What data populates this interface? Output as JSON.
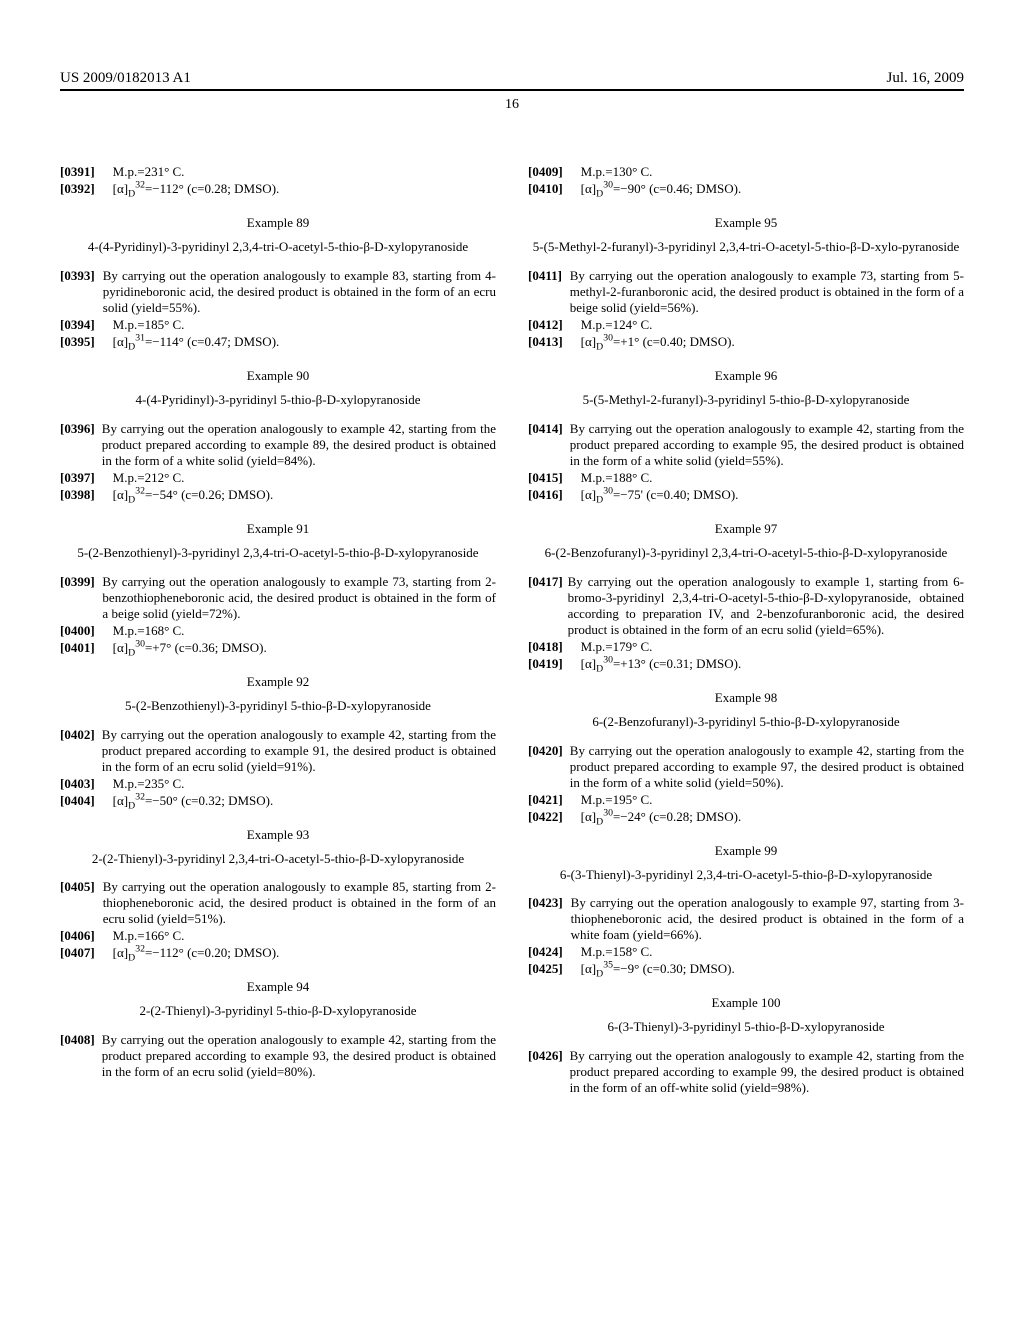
{
  "header": {
    "patent_number": "US 2009/0182013 A1",
    "date": "Jul. 16, 2009",
    "page_number": "16"
  },
  "left": {
    "p0391": {
      "num": "[0391]",
      "text": "M.p.=231° C."
    },
    "p0392": {
      "num": "[0392]",
      "text": "[α]",
      "sub": "D",
      "sup": "32",
      "tail": "=−112° (c=0.28; DMSO)."
    },
    "ex89": {
      "heading": "Example 89",
      "title": "4-(4-Pyridinyl)-3-pyridinyl 2,3,4-tri-O-acetyl-5-thio-β-D-xylopyranoside"
    },
    "p0393": {
      "num": "[0393]",
      "text": "By carrying out the operation analogously to example 83, starting from 4-pyridineboronic acid, the desired product is obtained in the form of an ecru solid (yield=55%)."
    },
    "p0394": {
      "num": "[0394]",
      "text": "M.p.=185° C."
    },
    "p0395": {
      "num": "[0395]",
      "text": "[α]",
      "sub": "D",
      "sup": "31",
      "tail": "=−114° (c=0.47; DMSO)."
    },
    "ex90": {
      "heading": "Example 90",
      "title": "4-(4-Pyridinyl)-3-pyridinyl 5-thio-β-D-xylopyranoside"
    },
    "p0396": {
      "num": "[0396]",
      "text": "By carrying out the operation analogously to example 42, starting from the product prepared according to example 89, the desired product is obtained in the form of a white solid (yield=84%)."
    },
    "p0397": {
      "num": "[0397]",
      "text": "M.p.=212° C."
    },
    "p0398": {
      "num": "[0398]",
      "text": "[α]",
      "sub": "D",
      "sup": "32",
      "tail": "=−54° (c=0.26; DMSO)."
    },
    "ex91": {
      "heading": "Example 91",
      "title": "5-(2-Benzothienyl)-3-pyridinyl 2,3,4-tri-O-acetyl-5-thio-β-D-xylopyranoside"
    },
    "p0399": {
      "num": "[0399]",
      "text": "By carrying out the operation analogously to example 73, starting from 2-benzothiopheneboronic acid, the desired product is obtained in the form of a beige solid (yield=72%)."
    },
    "p0400": {
      "num": "[0400]",
      "text": "M.p.=168° C."
    },
    "p0401": {
      "num": "[0401]",
      "text": "[α]",
      "sub": "D",
      "sup": "30",
      "tail": "=+7° (c=0.36; DMSO)."
    },
    "ex92": {
      "heading": "Example 92",
      "title": "5-(2-Benzothienyl)-3-pyridinyl 5-thio-β-D-xylopyranoside"
    },
    "p0402": {
      "num": "[0402]",
      "text": "By carrying out the operation analogously to example 42, starting from the product prepared according to example 91, the desired product is obtained in the form of an ecru solid (yield=91%)."
    },
    "p0403": {
      "num": "[0403]",
      "text": "M.p.=235° C."
    },
    "p0404": {
      "num": "[0404]",
      "text": "[α]",
      "sub": "D",
      "sup": "32",
      "tail": "=−50° (c=0.32; DMSO)."
    },
    "ex93": {
      "heading": "Example 93",
      "title": "2-(2-Thienyl)-3-pyridinyl 2,3,4-tri-O-acetyl-5-thio-β-D-xylopyranoside"
    },
    "p0405": {
      "num": "[0405]",
      "text": "By carrying out the operation analogously to example 85, starting from 2-thiopheneboronic acid, the desired product is obtained in the form of an ecru solid (yield=51%)."
    },
    "p0406": {
      "num": "[0406]",
      "text": "M.p.=166° C."
    },
    "p0407": {
      "num": "[0407]",
      "text": "[α]",
      "sub": "D",
      "sup": "32",
      "tail": "=−112° (c=0.20; DMSO)."
    },
    "ex94": {
      "heading": "Example 94",
      "title": "2-(2-Thienyl)-3-pyridinyl 5-thio-β-D-xylopyranoside"
    },
    "p0408": {
      "num": "[0408]",
      "text": "By carrying out the operation analogously to example 42, starting from the product prepared according to example 93, the desired product is obtained in the form of an ecru solid (yield=80%)."
    }
  },
  "right": {
    "p0409": {
      "num": "[0409]",
      "text": "M.p.=130° C."
    },
    "p0410": {
      "num": "[0410]",
      "text": "[α]",
      "sub": "D",
      "sup": "30",
      "tail": "=−90° (c=0.46; DMSO)."
    },
    "ex95": {
      "heading": "Example 95",
      "title": "5-(5-Methyl-2-furanyl)-3-pyridinyl 2,3,4-tri-O-acetyl-5-thio-β-D-xylo-pyranoside"
    },
    "p0411": {
      "num": "[0411]",
      "text": "By carrying out the operation analogously to example 73, starting from 5-methyl-2-furanboronic acid, the desired product is obtained in the form of a beige solid (yield=56%)."
    },
    "p0412": {
      "num": "[0412]",
      "text": "M.p.=124° C."
    },
    "p0413": {
      "num": "[0413]",
      "text": "[α]",
      "sub": "D",
      "sup": "30",
      "tail": "=+1° (c=0.40; DMSO)."
    },
    "ex96": {
      "heading": "Example 96",
      "title": "5-(5-Methyl-2-furanyl)-3-pyridinyl 5-thio-β-D-xylopyranoside"
    },
    "p0414": {
      "num": "[0414]",
      "text": "By carrying out the operation analogously to example 42, starting from the product prepared according to example 95, the desired product is obtained in the form of a white solid (yield=55%)."
    },
    "p0415": {
      "num": "[0415]",
      "text": "M.p.=188° C."
    },
    "p0416": {
      "num": "[0416]",
      "text": "[α]",
      "sub": "D",
      "sup": "30",
      "tail": "=−75' (c=0.40; DMSO)."
    },
    "ex97": {
      "heading": "Example 97",
      "title": "6-(2-Benzofuranyl)-3-pyridinyl 2,3,4-tri-O-acetyl-5-thio-β-D-xylopyranoside"
    },
    "p0417": {
      "num": "[0417]",
      "text": "By carrying out the operation analogously to example 1, starting from 6-bromo-3-pyridinyl 2,3,4-tri-O-acetyl-5-thio-β-D-xylopyranoside, obtained according to preparation IV, and 2-benzofuranboronic acid, the desired product is obtained in the form of an ecru solid (yield=65%)."
    },
    "p0418": {
      "num": "[0418]",
      "text": "M.p.=179° C."
    },
    "p0419": {
      "num": "[0419]",
      "text": "[α]",
      "sub": "D",
      "sup": "30",
      "tail": "=+13° (c=0.31; DMSO)."
    },
    "ex98": {
      "heading": "Example 98",
      "title": "6-(2-Benzofuranyl)-3-pyridinyl 5-thio-β-D-xylopyranoside"
    },
    "p0420": {
      "num": "[0420]",
      "text": "By carrying out the operation analogously to example 42, starting from the product prepared according to example 97, the desired product is obtained in the form of a white solid (yield=50%)."
    },
    "p0421": {
      "num": "[0421]",
      "text": "M.p.=195° C."
    },
    "p0422": {
      "num": "[0422]",
      "text": "[α]",
      "sub": "D",
      "sup": "30",
      "tail": "=−24° (c=0.28; DMSO)."
    },
    "ex99": {
      "heading": "Example 99",
      "title": "6-(3-Thienyl)-3-pyridinyl 2,3,4-tri-O-acetyl-5-thio-β-D-xylopyranoside"
    },
    "p0423": {
      "num": "[0423]",
      "text": "By carrying out the operation analogously to example 97, starting from 3-thiopheneboronic acid, the desired product is obtained in the form of a white foam (yield=66%)."
    },
    "p0424": {
      "num": "[0424]",
      "text": "M.p.=158° C."
    },
    "p0425": {
      "num": "[0425]",
      "text": "[α]",
      "sub": "D",
      "sup": "35",
      "tail": "=−9° (c=0.30; DMSO)."
    },
    "ex100": {
      "heading": "Example 100",
      "title": "6-(3-Thienyl)-3-pyridinyl 5-thio-β-D-xylopyranoside"
    },
    "p0426": {
      "num": "[0426]",
      "text": "By carrying out the operation analogously to example 42, starting from the product prepared according to example 99, the desired product is obtained in the form of an off-white solid (yield=98%)."
    }
  }
}
